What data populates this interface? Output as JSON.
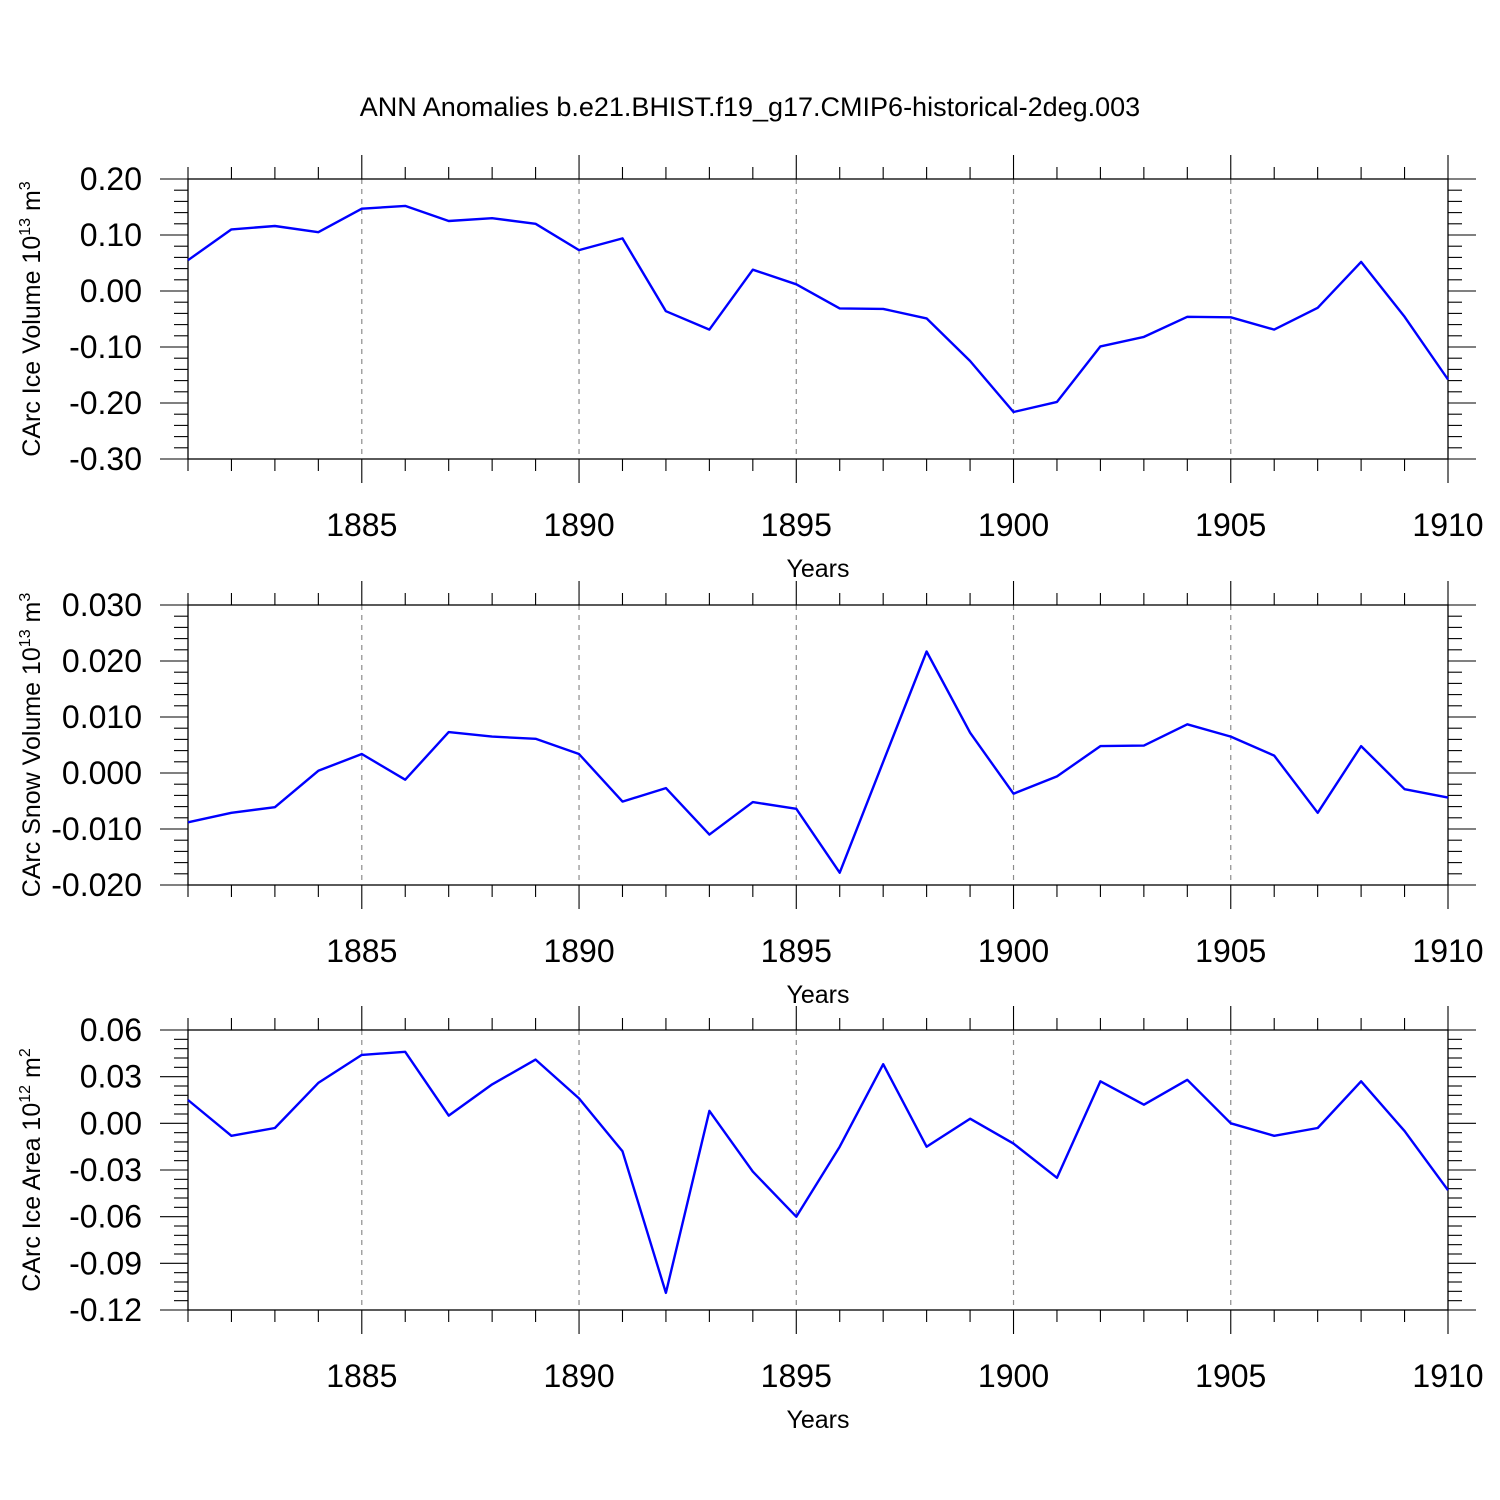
{
  "title": "ANN Anomalies b.e21.BHIST.f19_g17.CMIP6-historical-2deg.003",
  "colors": {
    "line": "#0000ff",
    "axis": "#000000",
    "grid": "#8c8c8c"
  },
  "chart_data": [
    {
      "type": "line",
      "xlabel": "Years",
      "ylabel": {
        "text": "CArc Ice Volume 10",
        "sup": "13",
        "unit": " m",
        "unit_sup": "3"
      },
      "xlim": [
        1881,
        1910
      ],
      "ylim": [
        -0.3,
        0.2
      ],
      "yticks": [
        0.2,
        0.1,
        0.0,
        -0.1,
        -0.2,
        -0.3
      ],
      "ytick_labels": [
        "0.20",
        "0.10",
        "0.00",
        "-0.10",
        "-0.20",
        "-0.30"
      ],
      "xticks": [
        1885,
        1890,
        1895,
        1900,
        1905,
        1910
      ],
      "xtick_labels": [
        "1885",
        "1890",
        "1895",
        "1900",
        "1905",
        "1910"
      ],
      "grid": "vertical dashed at labeled years",
      "x": [
        1881,
        1882,
        1883,
        1884,
        1885,
        1886,
        1887,
        1888,
        1889,
        1890,
        1891,
        1892,
        1893,
        1894,
        1895,
        1896,
        1897,
        1898,
        1899,
        1900,
        1901,
        1902,
        1903,
        1904,
        1905,
        1906,
        1907,
        1908,
        1909,
        1910
      ],
      "series": [
        {
          "values": [
            0.055,
            0.11,
            0.116,
            0.105,
            0.147,
            0.152,
            0.125,
            0.13,
            0.12,
            0.073,
            0.094,
            -0.036,
            -0.069,
            0.038,
            0.012,
            -0.031,
            -0.032,
            -0.049,
            -0.125,
            -0.216,
            -0.198,
            -0.099,
            -0.082,
            -0.046,
            -0.047,
            -0.069,
            -0.03,
            0.052,
            -0.046,
            -0.158
          ]
        }
      ]
    },
    {
      "type": "line",
      "xlabel": "Years",
      "ylabel": {
        "text": "CArc Snow Volume 10",
        "sup": "13",
        "unit": " m",
        "unit_sup": "3"
      },
      "xlim": [
        1881,
        1910
      ],
      "ylim": [
        -0.02,
        0.03
      ],
      "yticks": [
        0.03,
        0.02,
        0.01,
        0.0,
        -0.01,
        -0.02
      ],
      "ytick_labels": [
        "0.030",
        "0.020",
        "0.010",
        "0.000",
        "-0.010",
        "-0.020"
      ],
      "xticks": [
        1885,
        1890,
        1895,
        1900,
        1905,
        1910
      ],
      "xtick_labels": [
        "1885",
        "1890",
        "1895",
        "1900",
        "1905",
        "1910"
      ],
      "grid": "vertical dashed at labeled years",
      "x": [
        1881,
        1882,
        1883,
        1884,
        1885,
        1886,
        1887,
        1888,
        1889,
        1890,
        1891,
        1892,
        1893,
        1894,
        1895,
        1896,
        1897,
        1898,
        1899,
        1900,
        1901,
        1902,
        1903,
        1904,
        1905,
        1906,
        1907,
        1908,
        1909,
        1910
      ],
      "series": [
        {
          "values": [
            -0.0088,
            -0.0071,
            -0.0061,
            0.0004,
            0.0034,
            -0.0012,
            0.0073,
            0.0065,
            0.0061,
            0.0034,
            -0.0051,
            -0.0027,
            -0.011,
            -0.0052,
            -0.0064,
            -0.0178,
            0.002,
            0.0217,
            0.0072,
            -0.0037,
            -0.0006,
            0.0048,
            0.0049,
            0.0087,
            0.0065,
            0.0031,
            -0.0071,
            0.0048,
            -0.0029,
            -0.0044
          ]
        }
      ]
    },
    {
      "type": "line",
      "xlabel": "Years",
      "ylabel": {
        "text": "CArc Ice Area 10",
        "sup": "12",
        "unit": " m",
        "unit_sup": "2"
      },
      "xlim": [
        1881,
        1910
      ],
      "ylim": [
        -0.12,
        0.06
      ],
      "yticks": [
        0.06,
        0.03,
        0.0,
        -0.03,
        -0.06,
        -0.09,
        -0.12
      ],
      "ytick_labels": [
        "0.06",
        "0.03",
        "0.00",
        "-0.03",
        "-0.06",
        "-0.09",
        "-0.12"
      ],
      "xticks": [
        1885,
        1890,
        1895,
        1900,
        1905,
        1910
      ],
      "xtick_labels": [
        "1885",
        "1890",
        "1895",
        "1900",
        "1905",
        "1910"
      ],
      "grid": "vertical dashed at labeled years",
      "x": [
        1881,
        1882,
        1883,
        1884,
        1885,
        1886,
        1887,
        1888,
        1889,
        1890,
        1891,
        1892,
        1893,
        1894,
        1895,
        1896,
        1897,
        1898,
        1899,
        1900,
        1901,
        1902,
        1903,
        1904,
        1905,
        1906,
        1907,
        1908,
        1909,
        1910
      ],
      "series": [
        {
          "values": [
            0.015,
            -0.008,
            -0.003,
            0.026,
            0.044,
            0.046,
            0.005,
            0.025,
            0.041,
            0.016,
            -0.018,
            -0.109,
            0.008,
            -0.031,
            -0.06,
            -0.015,
            0.038,
            -0.015,
            0.003,
            -0.013,
            -0.035,
            0.027,
            0.012,
            0.028,
            0.0,
            -0.008,
            -0.003,
            0.027,
            -0.005,
            -0.043
          ]
        }
      ]
    }
  ]
}
